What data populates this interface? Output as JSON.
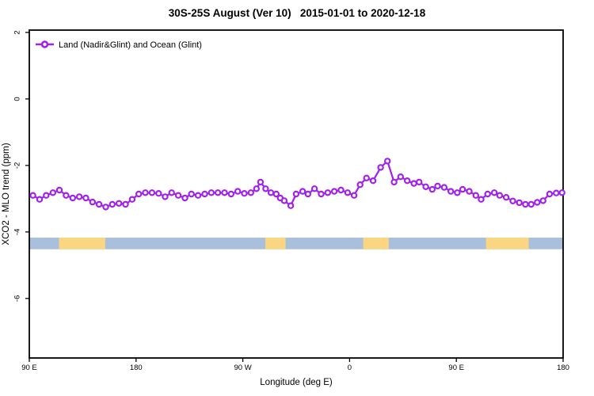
{
  "chart_data": {
    "type": "line",
    "title": "30S-25S August (Ver 10)   2015-01-01 to 2020-12-18",
    "xlabel": "Longitude (deg E)",
    "ylabel": "XCO2 - MLO trend (ppm)",
    "xlim": [
      90,
      540
    ],
    "ylim": [
      -7.79,
      2.07
    ],
    "grid": false,
    "xticks": [
      {
        "value": 90,
        "label": "90 E"
      },
      {
        "value": 180,
        "label": "180"
      },
      {
        "value": 270,
        "label": "90 W"
      },
      {
        "value": 360,
        "label": "0"
      },
      {
        "value": 450,
        "label": "90 E"
      },
      {
        "value": 540,
        "label": "180"
      }
    ],
    "yticks": [
      {
        "value": 2,
        "label": "2"
      },
      {
        "value": 0,
        "label": "0"
      },
      {
        "value": -2,
        "label": "-2"
      },
      {
        "value": -4,
        "label": "-4"
      },
      {
        "value": -6,
        "label": "-6"
      }
    ],
    "legend": {
      "position": "top-left",
      "entries": [
        {
          "label": "Land (Nadir&Glint) and Ocean (Glint)",
          "color": "#A020F0",
          "marker": "open-circle"
        }
      ]
    },
    "series": [
      {
        "name": "Land (Nadir&Glint) and Ocean (Glint)",
        "color": "#A020F0",
        "x": [
          93.1,
          98.7,
          104.2,
          109.9,
          115.4,
          121.0,
          126.6,
          132.1,
          137.7,
          143.3,
          148.8,
          154.4,
          160.0,
          165.6,
          171.1,
          176.7,
          182.3,
          187.8,
          193.4,
          199.0,
          204.5,
          210.0,
          215.6,
          221.2,
          226.7,
          232.3,
          237.9,
          243.4,
          249.0,
          254.6,
          260.1,
          265.7,
          271.3,
          276.8,
          281.5,
          284.9,
          289.2,
          293.7,
          298.2,
          301.5,
          304.9,
          310.4,
          314.9,
          320.4,
          324.9,
          330.4,
          336.0,
          341.6,
          347.1,
          352.7,
          358.3,
          363.8,
          368.9,
          374.2,
          379.8,
          386.2,
          391.9,
          397.5,
          403.0,
          408.6,
          414.2,
          418.6,
          424.2,
          429.7,
          434.2,
          439.7,
          445.3,
          450.8,
          455.3,
          460.9,
          466.4,
          470.9,
          476.4,
          482.0,
          486.5,
          492.0,
          497.6,
          503.1,
          508.2,
          513.1,
          518.2,
          523.1,
          528.6,
          534.2,
          539.1
        ],
        "values": [
          -2.9,
          -3.02,
          -2.9,
          -2.82,
          -2.74,
          -2.9,
          -2.98,
          -2.94,
          -2.98,
          -3.1,
          -3.17,
          -3.25,
          -3.17,
          -3.14,
          -3.17,
          -3.02,
          -2.86,
          -2.82,
          -2.82,
          -2.84,
          -2.94,
          -2.82,
          -2.9,
          -2.98,
          -2.86,
          -2.9,
          -2.86,
          -2.82,
          -2.82,
          -2.82,
          -2.86,
          -2.78,
          -2.84,
          -2.82,
          -2.7,
          -2.5,
          -2.7,
          -2.82,
          -2.86,
          -2.98,
          -3.06,
          -3.21,
          -2.86,
          -2.78,
          -2.86,
          -2.7,
          -2.86,
          -2.82,
          -2.78,
          -2.74,
          -2.82,
          -2.9,
          -2.58,
          -2.38,
          -2.46,
          -2.06,
          -1.87,
          -2.5,
          -2.34,
          -2.46,
          -2.54,
          -2.5,
          -2.64,
          -2.72,
          -2.62,
          -2.66,
          -2.78,
          -2.82,
          -2.72,
          -2.78,
          -2.9,
          -3.02,
          -2.86,
          -2.82,
          -2.9,
          -2.96,
          -3.07,
          -3.12,
          -3.17,
          -3.17,
          -3.11,
          -3.06,
          -2.86,
          -2.83,
          -2.82
        ]
      }
    ],
    "surface_band": {
      "description": "ocean-land mask strip",
      "value_top": -4.17,
      "value_bottom": -4.52,
      "ocean_color": "#A9BFDB",
      "land_color": "#FBD682",
      "ocean_range": [
        90,
        540
      ],
      "land_segments": [
        [
          115,
          154
        ],
        [
          289,
          306
        ],
        [
          371.5,
          393
        ],
        [
          475,
          511
        ]
      ]
    }
  },
  "colors": {
    "line": "#A020F0",
    "marker_fill": "#ffffff",
    "axis": "#000000",
    "background": "#ffffff"
  }
}
